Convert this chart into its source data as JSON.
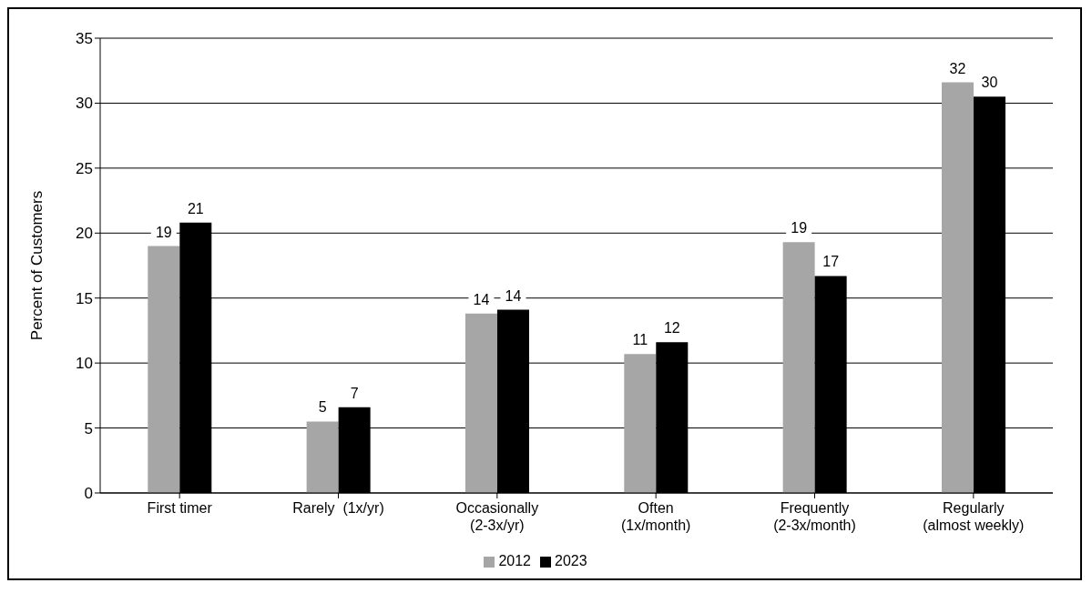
{
  "chart_data": {
    "type": "bar",
    "ylabel": "Percent of Customers",
    "categories": [
      "First timer",
      "Rarely  (1x/yr)",
      "Occasionally\n(2-3x/yr)",
      "Often\n(1x/month)",
      "Frequently\n(2-3x/month)",
      "Regularly\n(almost weekly)"
    ],
    "series": [
      {
        "name": "2012",
        "color": "#a6a6a6",
        "values": [
          19.0,
          5.5,
          13.8,
          10.7,
          19.3,
          31.6
        ],
        "value_labels": [
          "19",
          "5",
          "14",
          "11",
          "19",
          "32"
        ]
      },
      {
        "name": "2023",
        "color": "#000000",
        "values": [
          20.8,
          6.6,
          14.1,
          11.6,
          16.7,
          30.5
        ],
        "value_labels": [
          "21",
          "7",
          "14",
          "12",
          "17",
          "30"
        ]
      }
    ],
    "ylim": [
      0,
      35
    ],
    "yticks": [
      0,
      5,
      10,
      15,
      20,
      25,
      30,
      35
    ],
    "grid": "y",
    "legend": "bottom"
  }
}
